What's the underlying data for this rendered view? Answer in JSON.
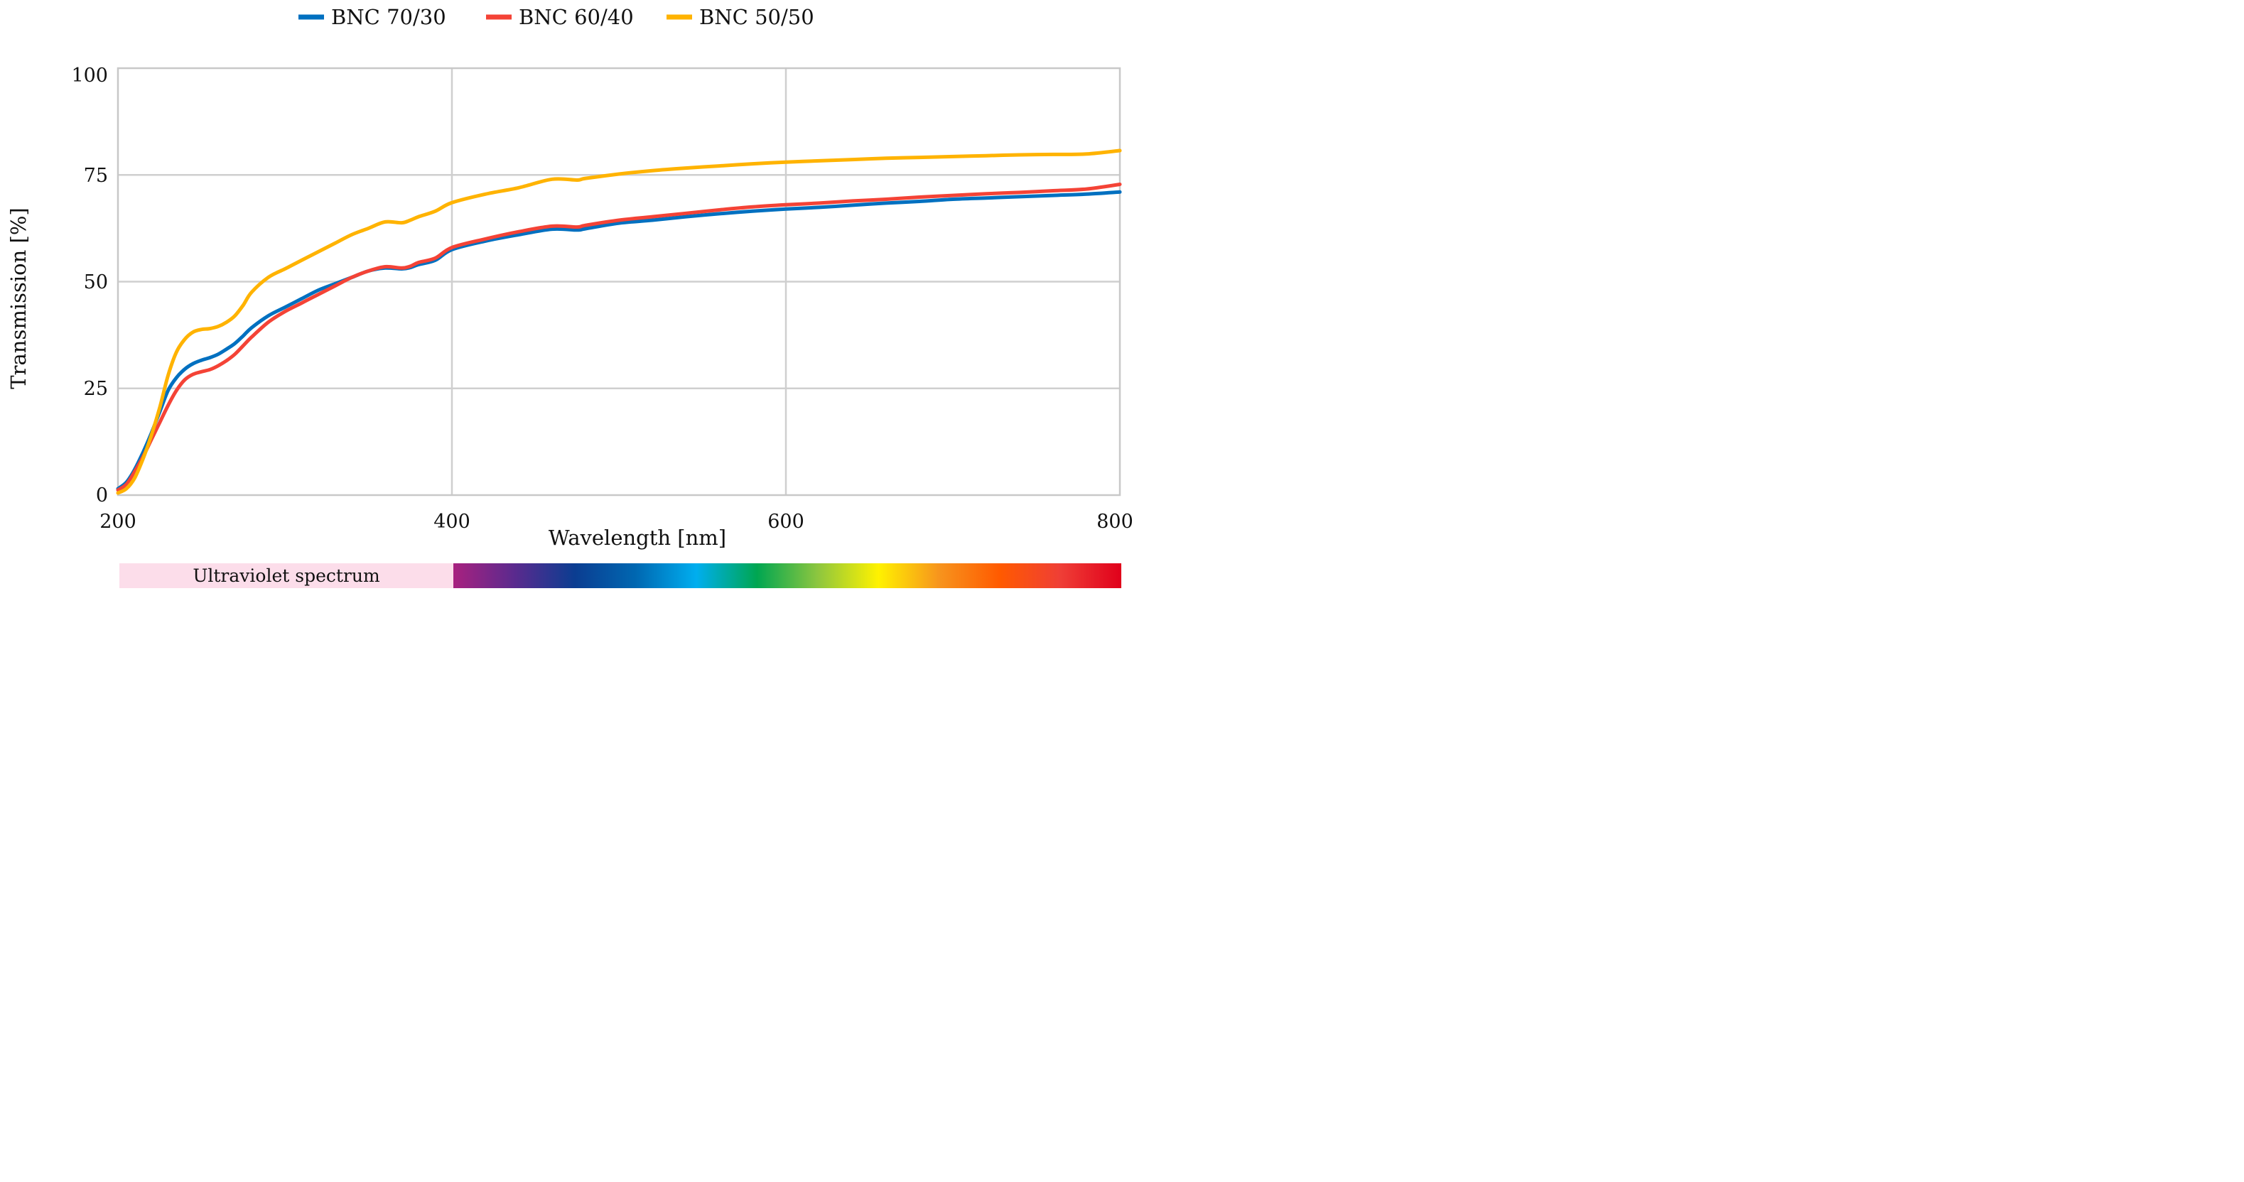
{
  "chart_data": {
    "type": "line",
    "title": "",
    "xlabel": "Wavelength [nm]",
    "ylabel": "Transmission [%]",
    "xlim": [
      200,
      800
    ],
    "ylim": [
      0,
      100
    ],
    "x_ticks": [
      "200",
      "400",
      "600",
      "800"
    ],
    "y_ticks": [
      "0",
      "25",
      "50",
      "75",
      "100"
    ],
    "grid": true,
    "legend_position": "top-center",
    "series": [
      {
        "name": "BNC 70/30",
        "color": "#0070C0",
        "x": [
          200,
          205,
          210,
          215,
          220,
          225,
          230,
          235,
          240,
          245,
          250,
          255,
          260,
          265,
          270,
          275,
          280,
          290,
          300,
          310,
          320,
          330,
          340,
          350,
          360,
          370,
          375,
          380,
          390,
          400,
          420,
          440,
          460,
          475,
          480,
          500,
          520,
          540,
          560,
          580,
          600,
          620,
          640,
          660,
          680,
          700,
          720,
          740,
          760,
          780,
          800
        ],
        "y": [
          1.5,
          3,
          6,
          10,
          14.5,
          19.5,
          24.5,
          27.5,
          29.5,
          30.8,
          31.6,
          32.2,
          33,
          34.2,
          35.5,
          37.3,
          39.2,
          42,
          44,
          46,
          48,
          49.5,
          51,
          52.5,
          53.2,
          53,
          53.3,
          54,
          55,
          57.5,
          59.5,
          61,
          62.3,
          62.1,
          62.4,
          63.7,
          64.4,
          65.2,
          65.9,
          66.5,
          67,
          67.4,
          67.9,
          68.4,
          68.8,
          69.3,
          69.6,
          69.9,
          70.2,
          70.5,
          71
        ]
      },
      {
        "name": "BNC 60/40",
        "color": "#F44336",
        "x": [
          200,
          205,
          210,
          215,
          220,
          225,
          230,
          235,
          240,
          245,
          250,
          255,
          260,
          265,
          270,
          275,
          280,
          290,
          300,
          310,
          320,
          330,
          340,
          350,
          360,
          370,
          375,
          380,
          390,
          400,
          420,
          440,
          460,
          475,
          480,
          500,
          520,
          540,
          560,
          580,
          600,
          620,
          640,
          660,
          680,
          700,
          720,
          740,
          760,
          780,
          800
        ],
        "y": [
          1.2,
          2.5,
          5.5,
          9,
          13,
          17,
          21,
          24.5,
          27,
          28.3,
          28.9,
          29.4,
          30.3,
          31.5,
          33,
          35,
          37,
          40.5,
          43,
          45,
          47,
          49,
          51,
          52.5,
          53.5,
          53.2,
          53.6,
          54.5,
          55.5,
          58,
          60,
          61.7,
          63,
          62.8,
          63.2,
          64.4,
          65.2,
          66,
          66.8,
          67.5,
          68,
          68.4,
          68.9,
          69.3,
          69.8,
          70.2,
          70.6,
          70.9,
          71.3,
          71.7,
          72.8
        ]
      },
      {
        "name": "BNC 50/50",
        "color": "#FFB300",
        "x": [
          200,
          205,
          210,
          215,
          220,
          225,
          230,
          235,
          240,
          245,
          250,
          255,
          260,
          265,
          270,
          275,
          280,
          290,
          300,
          310,
          320,
          330,
          340,
          350,
          360,
          370,
          375,
          380,
          390,
          400,
          420,
          440,
          460,
          475,
          480,
          500,
          520,
          540,
          560,
          580,
          600,
          620,
          640,
          660,
          680,
          700,
          720,
          740,
          760,
          780,
          800
        ],
        "y": [
          0.5,
          1.5,
          4,
          8.5,
          14,
          20.5,
          28,
          33.5,
          36.5,
          38.2,
          38.8,
          39,
          39.5,
          40.5,
          42,
          44.5,
          47.5,
          51,
          53,
          55,
          57,
          59,
          61,
          62.5,
          64,
          63.8,
          64.4,
          65.2,
          66.5,
          68.5,
          70.5,
          72,
          74,
          73.8,
          74.2,
          75.2,
          76,
          76.6,
          77.1,
          77.6,
          78,
          78.3,
          78.6,
          78.9,
          79.1,
          79.3,
          79.5,
          79.7,
          79.8,
          79.9,
          80.7
        ]
      }
    ],
    "spectrum_band": {
      "label": "Ultraviolet spectrum",
      "uv_range": [
        200,
        400
      ],
      "visible_range": [
        400,
        800
      ],
      "uv_color": "#FCDDEA",
      "visible_colors": [
        "#A8217F",
        "#5B2A8E",
        "#0B3D91",
        "#0067B1",
        "#00AEEF",
        "#00A651",
        "#8DC63F",
        "#FFF200",
        "#F7941D",
        "#FF5A00",
        "#EF3E36",
        "#E0001B"
      ]
    }
  }
}
